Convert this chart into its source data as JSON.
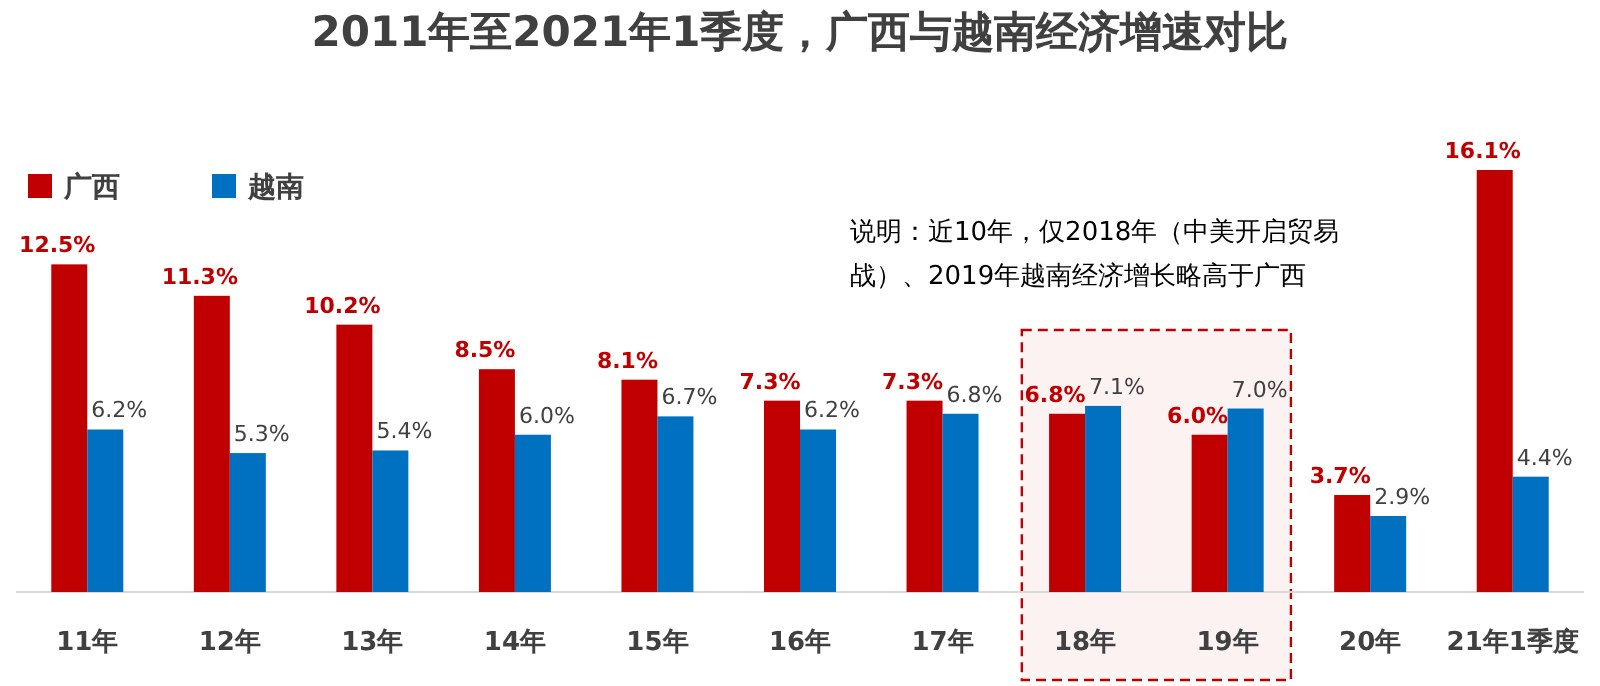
{
  "chart_data": {
    "type": "bar",
    "title": "2011年至2021年1季度，广西与越南经济增速对比",
    "categories": [
      "11年",
      "12年",
      "13年",
      "14年",
      "15年",
      "16年",
      "17年",
      "18年",
      "19年",
      "20年",
      "21年1季度"
    ],
    "series": [
      {
        "name": "广西",
        "color": "#c00000",
        "values": [
          12.5,
          11.3,
          10.2,
          8.5,
          8.1,
          7.3,
          7.3,
          6.8,
          6.0,
          3.7,
          16.1
        ],
        "value_labels": [
          "12.5%",
          "11.3%",
          "10.2%",
          "8.5%",
          "8.1%",
          "7.3%",
          "7.3%",
          "6.8%",
          "6.0%",
          "3.7%",
          "16.1%"
        ]
      },
      {
        "name": "越南",
        "color": "#0070c0",
        "values": [
          6.2,
          5.3,
          5.4,
          6.0,
          6.7,
          6.2,
          6.8,
          7.1,
          7.0,
          2.9,
          4.4
        ],
        "value_labels": [
          "6.2%",
          "5.3%",
          "5.4%",
          "6.0%",
          "6.7%",
          "6.2%",
          "6.8%",
          "7.1%",
          "7.0%",
          "2.9%",
          "4.4%"
        ]
      }
    ],
    "legend": "top left",
    "annotations": [
      "说明：近10年，仅2018年（中美开启贸易战）、2019年越南经济增长略高于广西"
    ],
    "bands": [
      {
        "axis": "x",
        "from": "18年",
        "to": "19年",
        "color": "#c00000"
      }
    ]
  }
}
